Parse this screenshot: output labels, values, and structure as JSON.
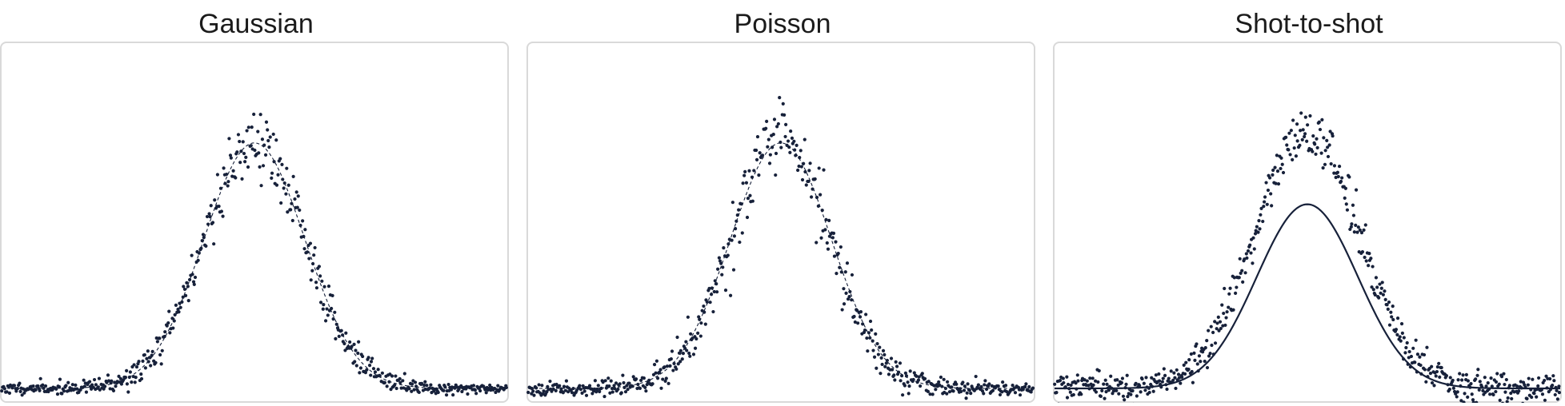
{
  "colors": {
    "points": "#17213a",
    "frame": "#d9d9d9",
    "background": "#ffffff"
  },
  "chart_data": [
    {
      "type": "scatter",
      "title": "Gaussian",
      "xlabel": "",
      "ylabel": "",
      "xlim": [
        -3,
        3
      ],
      "ylim": [
        -0.05,
        1.35
      ],
      "grid": false,
      "fit": {
        "style": "dashed",
        "amplitude": 0.96,
        "center": 0.0,
        "sigma": 0.6,
        "offset": 0.0
      },
      "noise": {
        "kind": "gaussian",
        "level": 0.04,
        "n_points": 520,
        "seed": 11
      }
    },
    {
      "type": "scatter",
      "title": "Poisson",
      "xlabel": "",
      "ylabel": "",
      "xlim": [
        -3,
        3
      ],
      "ylim": [
        -0.05,
        1.35
      ],
      "grid": false,
      "fit": {
        "style": "dashed",
        "amplitude": 0.96,
        "center": 0.0,
        "sigma": 0.6,
        "offset": 0.0
      },
      "noise": {
        "kind": "poisson",
        "level": 0.04,
        "n_points": 520,
        "seed": 23
      }
    },
    {
      "type": "scatter",
      "title": "Shot-to-shot",
      "xlabel": "",
      "ylabel": "",
      "xlim": [
        -3,
        3
      ],
      "ylim": [
        -0.05,
        1.35
      ],
      "grid": false,
      "fit": {
        "style": "solid",
        "amplitude": 0.72,
        "center": 0.0,
        "sigma": 0.6,
        "offset": 0.0
      },
      "data_curve": {
        "amplitude": 1.0,
        "center": 0.0,
        "sigma": 0.62
      },
      "noise": {
        "kind": "shot-to-shot",
        "level": 0.03,
        "n_points": 560,
        "seed": 37
      }
    }
  ]
}
